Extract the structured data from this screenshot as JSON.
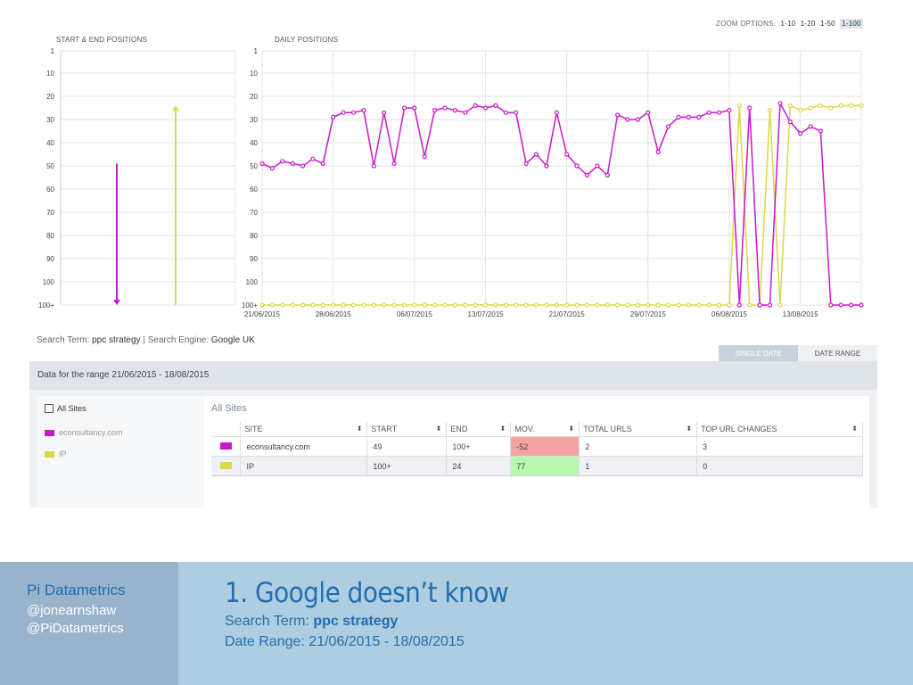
{
  "zoom": {
    "label": "ZOOM OPTIONS:",
    "options": [
      "1-10",
      "1-20",
      "1-50",
      "1-100"
    ],
    "active": "1-100"
  },
  "colors": {
    "econsultancy": "#cc16cc",
    "ip": "#d8d84a",
    "grid": "#dcdcdc",
    "accent_blue": "#1f6fb2"
  },
  "chart_data": [
    {
      "type": "line",
      "title": "START & END POSITIONS",
      "y_ticks": [
        "1",
        "10",
        "20",
        "30",
        "40",
        "50",
        "60",
        "70",
        "80",
        "90",
        "100",
        "100+"
      ],
      "y_inverted": true,
      "ylim": [
        1,
        101
      ],
      "series": [
        {
          "name": "econsultancy.com",
          "start": 49,
          "end": 101,
          "color": "#cc16cc"
        },
        {
          "name": "IP",
          "start": 101,
          "end": 24,
          "color": "#d8d84a"
        }
      ]
    },
    {
      "type": "line",
      "title": "DAILY POSITIONS",
      "y_ticks": [
        "1",
        "10",
        "20",
        "30",
        "40",
        "50",
        "60",
        "70",
        "80",
        "90",
        "100",
        "100+"
      ],
      "y_inverted": true,
      "ylim": [
        1,
        101
      ],
      "x_ticks": [
        "21/06/2015",
        "28/06/2015",
        "06/07/2015",
        "13/07/2015",
        "21/07/2015",
        "29/07/2015",
        "06/08/2015",
        "13/08/2015"
      ],
      "x_tick_index": [
        0,
        7,
        15,
        22,
        30,
        38,
        46,
        53
      ],
      "grid": true,
      "series": [
        {
          "name": "econsultancy.com",
          "color": "#cc16cc",
          "values": [
            49,
            51,
            48,
            49,
            50,
            47,
            49,
            29,
            27,
            27,
            26,
            50,
            27,
            49,
            25,
            25,
            46,
            26,
            25,
            26,
            27,
            24,
            25,
            24,
            27,
            27,
            49,
            45,
            50,
            27,
            45,
            50,
            54,
            50,
            54,
            28,
            30,
            30,
            27,
            44,
            33,
            29,
            29,
            29,
            27,
            27,
            26,
            101,
            25,
            101,
            101,
            23,
            31,
            36,
            33,
            35,
            101,
            101,
            101,
            101
          ]
        },
        {
          "name": "IP",
          "color": "#d8d84a",
          "values": [
            101,
            101,
            101,
            101,
            101,
            101,
            101,
            101,
            101,
            101,
            101,
            101,
            101,
            101,
            101,
            101,
            101,
            101,
            101,
            101,
            101,
            101,
            101,
            101,
            101,
            101,
            101,
            101,
            101,
            101,
            101,
            101,
            101,
            101,
            101,
            101,
            101,
            101,
            101,
            101,
            101,
            101,
            101,
            101,
            101,
            101,
            101,
            24,
            101,
            101,
            26,
            101,
            24,
            26,
            25,
            24,
            25,
            24,
            24,
            24
          ]
        }
      ]
    }
  ],
  "search_meta": {
    "term_label": "Search Term:",
    "term": "ppc strategy",
    "separator": "|",
    "engine_label": "Search Engine:",
    "engine": "Google UK"
  },
  "tabs": [
    "SINGLE DATE",
    "DATE RANGE"
  ],
  "range_label": "Data for the range 21/06/2015 - 18/08/2015",
  "sidebar": {
    "all_sites": "All Sites",
    "items": [
      {
        "label": "econsultancy.com",
        "color": "#cc16cc"
      },
      {
        "label": "IP",
        "color": "#d8d84a"
      }
    ]
  },
  "table": {
    "title": "All Sites",
    "headers": [
      "SITE",
      "START",
      "END",
      "MOV.",
      "TOTAL URLS",
      "TOP URL CHANGES"
    ],
    "rows": [
      {
        "site": "econsultancy.com",
        "start": "49",
        "end": "100+",
        "mov": "-52",
        "total_urls": "2",
        "top_url_changes": "3"
      },
      {
        "site": "IP",
        "start": "100+",
        "end": "24",
        "mov": "77",
        "total_urls": "1",
        "top_url_changes": "0"
      }
    ]
  },
  "footer": {
    "brand": "Pi Datametrics",
    "handles": [
      "@jonearnshaw",
      "@PiDatametrics"
    ],
    "headline": "1. Google doesn’t know",
    "search_term_label": "Search Term:",
    "search_term": "ppc strategy",
    "date_range_label": "Date Range:",
    "date_range": "21/06/2015 - 18/08/2015"
  }
}
